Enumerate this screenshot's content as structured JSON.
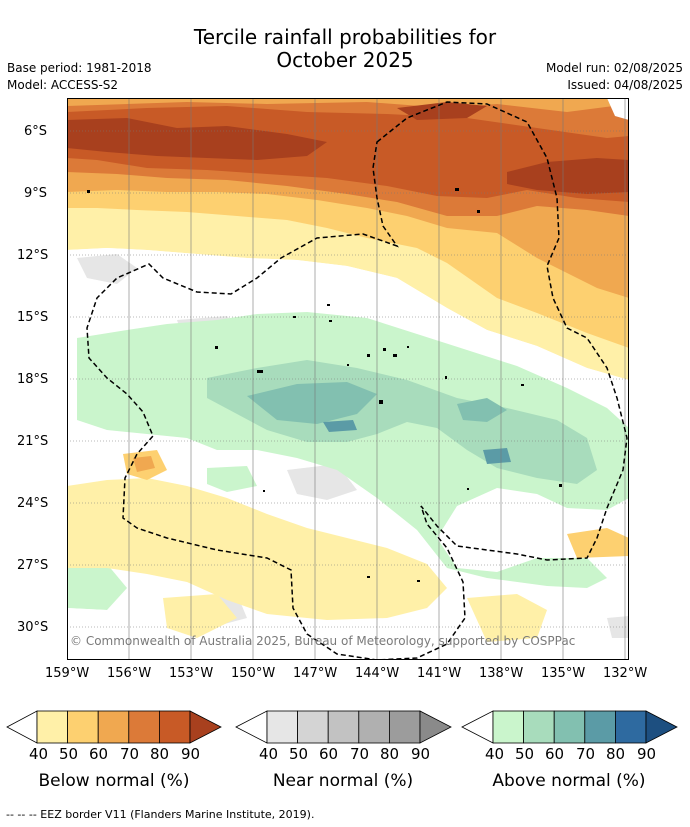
{
  "header": {
    "title_line1": "Tercile rainfall probabilities for",
    "title_line2": "October 2025",
    "base_period": "Base period: 1981-2018",
    "model": "Model: ACCESS-S2",
    "model_run": "Model run: 02/08/2025",
    "issued": "Issued: 04/08/2025"
  },
  "map": {
    "lat_ticks": [
      "6°S",
      "9°S",
      "12°S",
      "15°S",
      "18°S",
      "21°S",
      "24°S",
      "27°S",
      "30°S"
    ],
    "lon_ticks": [
      "159°W",
      "156°W",
      "153°W",
      "150°W",
      "147°W",
      "144°W",
      "141°W",
      "138°W",
      "135°W",
      "132°W"
    ],
    "copyright": "© Commonwealth of Australia 2025, Bureau of Meteorology, supported by COSPPac",
    "colors": {
      "below": [
        "#fff0a8",
        "#fdd070",
        "#f0a850",
        "#dc7a38",
        "#c85a26",
        "#a8401e"
      ],
      "near": [
        "#e6e6e6",
        "#d4d4d4",
        "#c2c2c2",
        "#b0b0b0",
        "#9c9c9c"
      ],
      "above": [
        "#caf5cc",
        "#a8dcbc",
        "#82c0b0",
        "#5b9ba6",
        "#2e6aa0",
        "#1d4f80"
      ]
    }
  },
  "legend": {
    "ticks": [
      "40",
      "50",
      "60",
      "70",
      "80",
      "90"
    ],
    "below_label": "Below normal (%)",
    "near_label": "Near normal (%)",
    "above_label": "Above normal (%)"
  },
  "footer": {
    "eez": "--  --  -- EEZ border V11 (Flanders Marine Institute, 2019)."
  }
}
